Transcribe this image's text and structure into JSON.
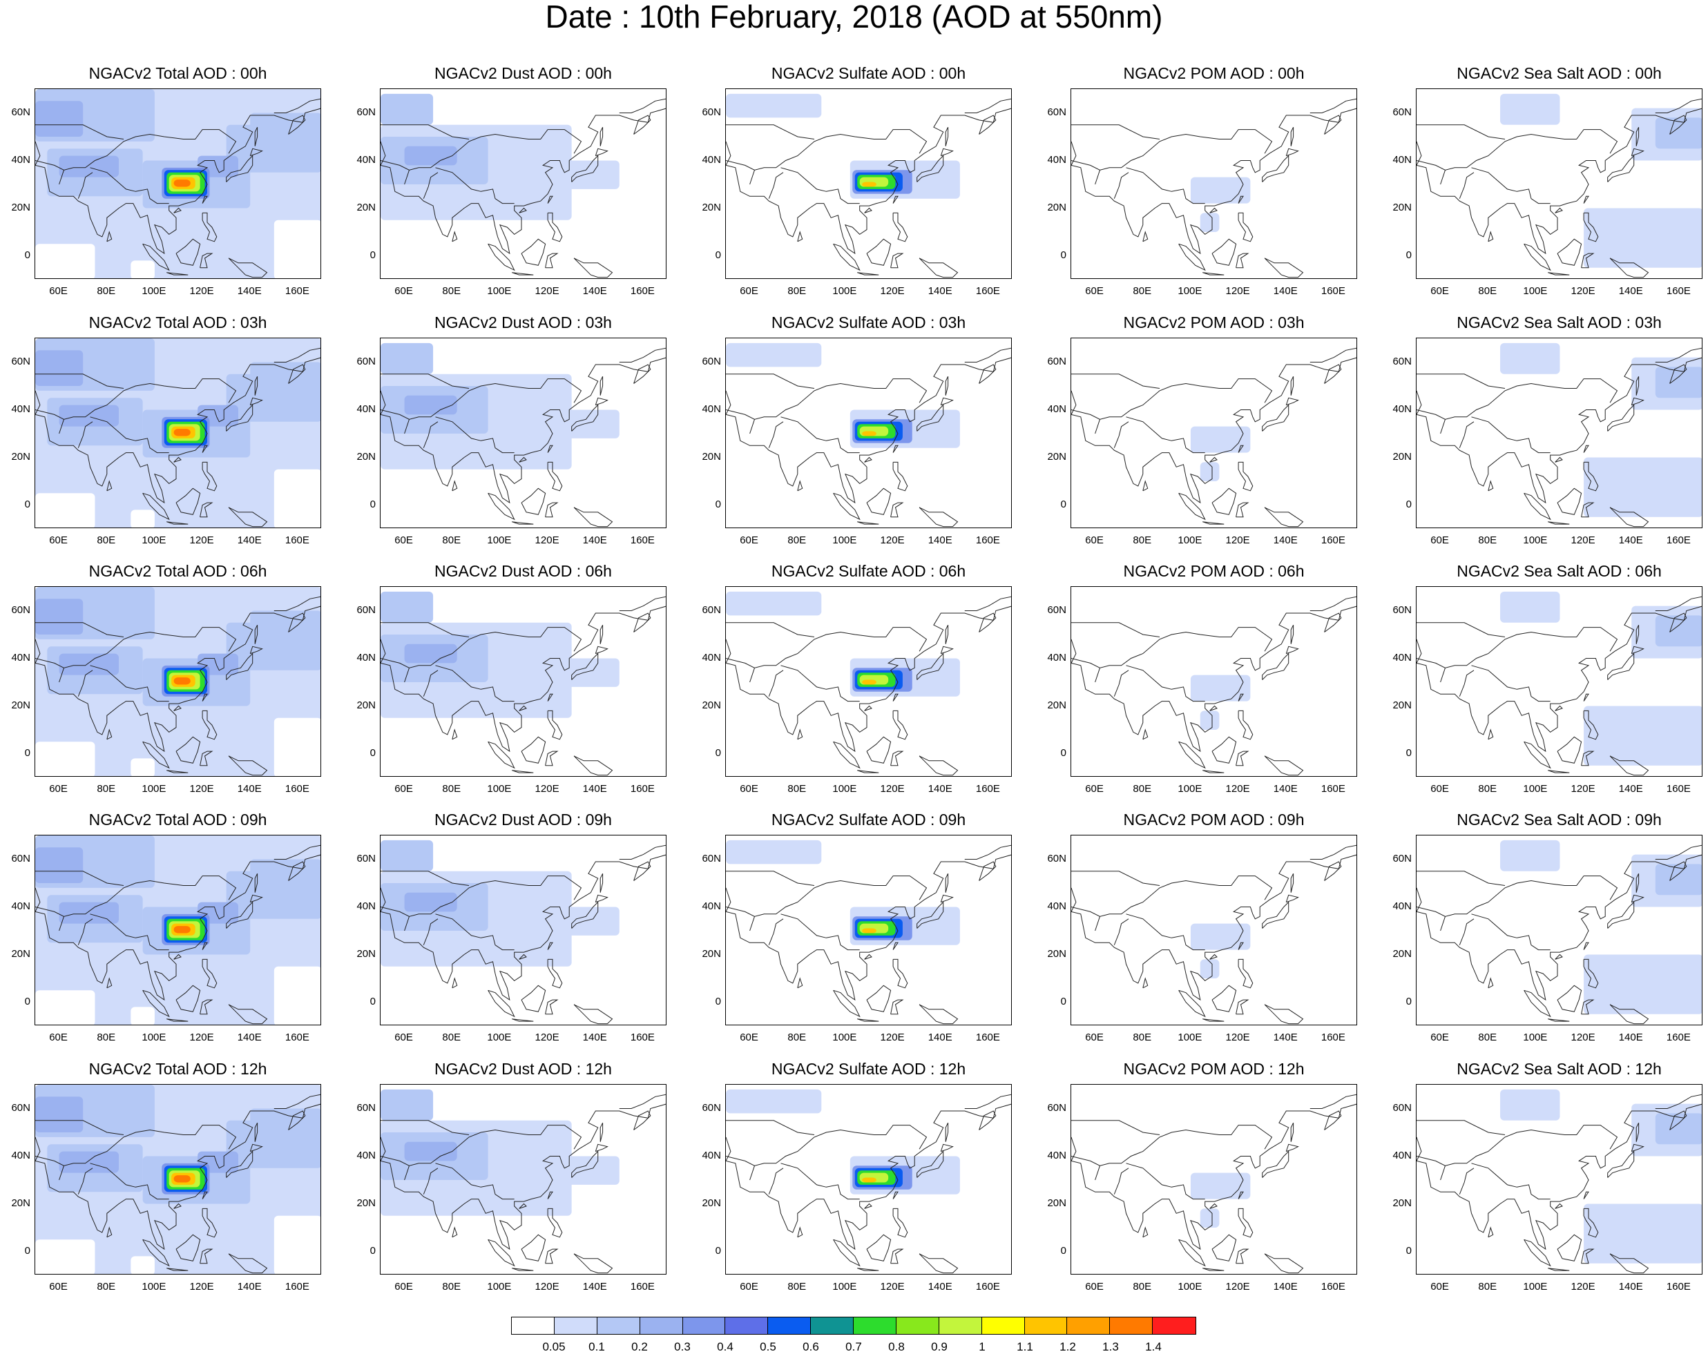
{
  "title": "Date : 10th February, 2018 (AOD at 550nm)",
  "rows": [
    {
      "hour": "00h",
      "titles": [
        "NGACv2 Total AOD : 00h",
        "NGACv2 Dust AOD : 00h",
        "NGACv2 Sulfate AOD : 00h",
        "NGACv2 POM AOD : 00h",
        "NGACv2 Sea Salt AOD : 00h"
      ]
    },
    {
      "hour": "03h",
      "titles": [
        "NGACv2 Total AOD : 03h",
        "NGACv2 Dust AOD : 03h",
        "NGACv2 Sulfate AOD : 03h",
        "NGACv2 POM AOD : 03h",
        "NGACv2 Sea Salt AOD : 03h"
      ]
    },
    {
      "hour": "06h",
      "titles": [
        "NGACv2 Total AOD : 06h",
        "NGACv2 Dust AOD : 06h",
        "NGACv2 Sulfate AOD : 06h",
        "NGACv2 POM AOD : 06h",
        "NGACv2 Sea Salt AOD : 06h"
      ]
    },
    {
      "hour": "09h",
      "titles": [
        "NGACv2 Total AOD : 09h",
        "NGACv2 Dust AOD : 09h",
        "NGACv2 Sulfate AOD : 09h",
        "NGACv2 POM AOD : 09h",
        "NGACv2 Sea Salt  AOD : 09h"
      ]
    },
    {
      "hour": "12h",
      "titles": [
        "NGACv2 Total AOD  : 12h",
        "NGACv2 Dust AOD : 12h",
        "NGACv2 Sulfate AOD : 12h",
        "NGACv2 POM  AOD : 12h",
        "NGACv2 Sea Salt  AOD : 12h"
      ]
    }
  ],
  "lat_ticks": [
    "60N",
    "40N",
    "20N",
    "0"
  ],
  "lon_ticks": [
    "60E",
    "80E",
    "100E",
    "120E",
    "140E",
    "160E"
  ],
  "map_extent": {
    "lon_min": 50,
    "lon_max": 170,
    "lat_min": -10,
    "lat_max": 70
  },
  "colorbar": {
    "labels": [
      "0.05",
      "0.1",
      "0.2",
      "0.3",
      "0.4",
      "0.5",
      "0.6",
      "0.7",
      "0.8",
      "0.9",
      "1",
      "1.1",
      "1.2",
      "1.3",
      "1.4"
    ],
    "colors": [
      "#ffffff",
      "#d0dcfa",
      "#b4c8f5",
      "#9bb2f0",
      "#7d96ec",
      "#5e6fe8",
      "#0a5cf0",
      "#0f9393",
      "#2ddc2d",
      "#88e81c",
      "#c3f53c",
      "#ffff00",
      "#ffc400",
      "#ffa000",
      "#ff7a00",
      "#ff1e1e"
    ]
  },
  "species": [
    "total",
    "dust",
    "sulfate",
    "pom",
    "seasalt"
  ]
}
